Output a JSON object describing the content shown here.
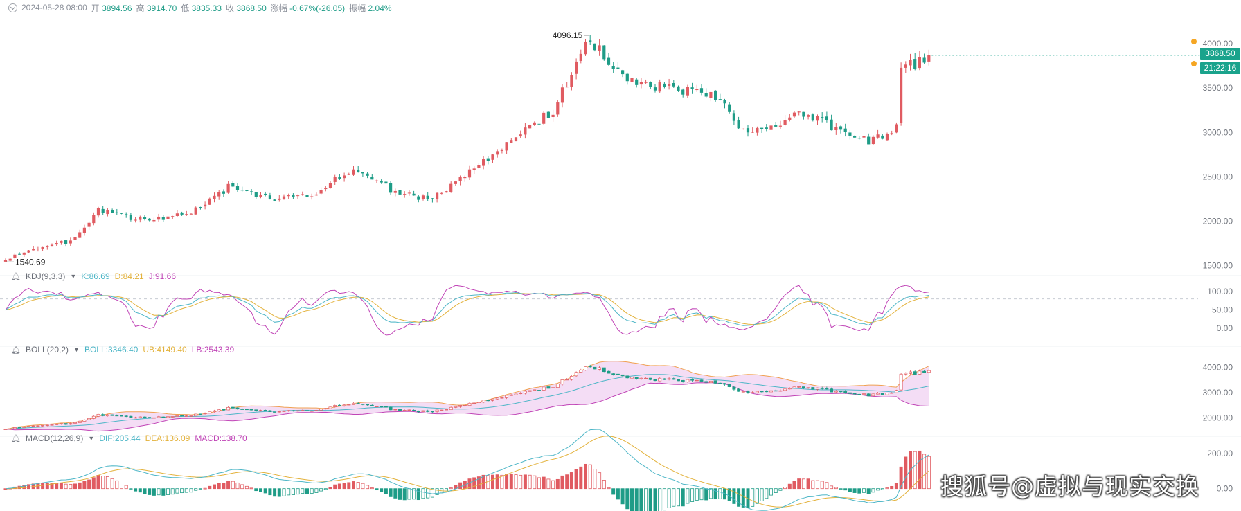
{
  "header": {
    "datetime": "2024-05-28 08:00",
    "open_label": "开",
    "open": "3894.56",
    "high_label": "高",
    "high": "3914.70",
    "low_label": "低",
    "low": "3835.33",
    "close_label": "收",
    "close": "3868.50",
    "change_label": "涨幅",
    "change": "-0.67%(-26.05)",
    "amp_label": "振幅",
    "amp": "2.04%"
  },
  "price_tag": {
    "price": "3868.50",
    "countdown": "21:22:16"
  },
  "colors": {
    "up": "#e05b61",
    "down": "#1e9c87",
    "kdj_k": "#4db6c7",
    "kdj_d": "#e3b23c",
    "kdj_j": "#c043b6",
    "boll_mid": "#4db6c7",
    "boll_ub": "#f0a050",
    "boll_lb": "#c043b6",
    "band_fill": "#f4ddf5",
    "tag": "#1aa38c",
    "alert_dot": "#f5a623"
  },
  "indicators": {
    "kdj": {
      "name": "KDJ(9,3,3)",
      "k": "K:86.69",
      "d": "D:84.21",
      "j": "J:91.66"
    },
    "boll": {
      "name": "BOLL(20,2)",
      "mid": "BOLL:3346.40",
      "ub": "UB:4149.40",
      "lb": "LB:2543.39"
    },
    "macd": {
      "name": "MACD(12,26,9)",
      "dif": "DIF:205.44",
      "dea": "DEA:136.09",
      "macd": "MACD:138.70"
    }
  },
  "watermark": "搜狐号@虚拟与现实交换",
  "chart_data": [
    {
      "type": "candlestick",
      "n": 200,
      "anchors": [
        [
          0,
          1560
        ],
        [
          5,
          1680
        ],
        [
          15,
          1790
        ],
        [
          20,
          2110
        ],
        [
          30,
          2000
        ],
        [
          40,
          2100
        ],
        [
          48,
          2380
        ],
        [
          58,
          2250
        ],
        [
          67,
          2320
        ],
        [
          75,
          2600
        ],
        [
          85,
          2300
        ],
        [
          92,
          2260
        ],
        [
          104,
          2700
        ],
        [
          118,
          3250
        ],
        [
          126,
          4060
        ],
        [
          133,
          3600
        ],
        [
          142,
          3500
        ],
        [
          154,
          3400
        ],
        [
          159,
          3000
        ],
        [
          172,
          3200
        ],
        [
          186,
          2900
        ],
        [
          192,
          3050
        ],
        [
          193,
          3700
        ],
        [
          199,
          3868
        ]
      ],
      "yticks": [
        1500,
        2000,
        2500,
        3000,
        3500,
        4000
      ],
      "yrange": [
        1450,
        4180
      ],
      "annotations": [
        {
          "text": "4096.15",
          "value": 4096.15
        },
        {
          "text": "1540.69",
          "value": 1540.69
        }
      ]
    },
    {
      "type": "line",
      "name": "KDJ(9,3,3)",
      "yticks": [
        0,
        50,
        100
      ],
      "yrange": [
        -30,
        130
      ],
      "reference_lines": [
        20,
        50,
        80
      ]
    },
    {
      "type": "candlestick",
      "name": "BOLL(20,2)",
      "yticks": [
        2000,
        3000,
        4000
      ],
      "yrange": [
        1500,
        4500
      ]
    },
    {
      "type": "bar",
      "name": "MACD(12,26,9)",
      "yticks": [
        0,
        200
      ],
      "yrange": [
        -120,
        260
      ]
    }
  ],
  "ytick_labels": {
    "price": [
      "1500.00",
      "2000.00",
      "2500.00",
      "3000.00",
      "3500.00",
      "4000.00"
    ],
    "kdj": [
      "0.00",
      "50.00",
      "100.00"
    ],
    "boll": [
      "2000.00",
      "3000.00",
      "4000.00"
    ],
    "macd": [
      "0.00",
      "200.00"
    ]
  }
}
